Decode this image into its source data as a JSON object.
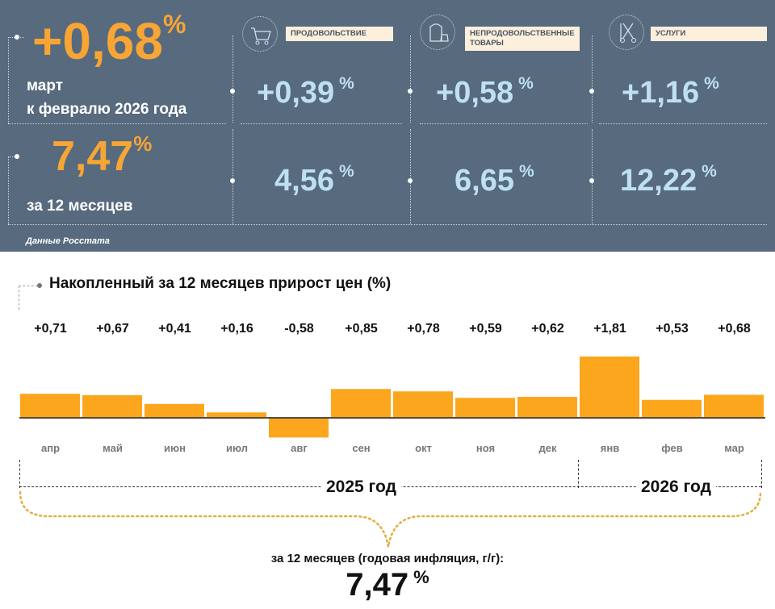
{
  "summary": {
    "monthly_value": "+0,68",
    "percent": "%",
    "monthly_label_1": "март",
    "monthly_label_2": "к февралю 2026 года",
    "annual_value": "7,47",
    "annual_label": "за 12 месяцев",
    "source": "Данные Росстата"
  },
  "categories": [
    {
      "name": "ПРОДОВОЛЬСТВИЕ",
      "icon": "shopping-cart-icon",
      "monthly": "+0,39",
      "annual": "4,56"
    },
    {
      "name_1": "НЕПРОДОВОЛЬСТВЕННЫЕ",
      "name_2": "ТОВАРЫ",
      "icon": "clothing-bag-icon",
      "monthly": "+0,58",
      "annual": "6,65"
    },
    {
      "name": "УСЛУГИ",
      "icon": "comb-scissors-icon",
      "monthly": "+1,16",
      "annual": "12,22"
    }
  ],
  "colors": {
    "panel": "#576a7e",
    "accent": "#f7a535",
    "value": "#bfe0f2",
    "bar": "#fba61c"
  },
  "chart_data": {
    "type": "bar",
    "title": "Накопленный за 12 месяцев прирост цен (%)",
    "categories": [
      "апр",
      "май",
      "июн",
      "июл",
      "авг",
      "сен",
      "окт",
      "ноя",
      "дек",
      "янв",
      "фев",
      "мар"
    ],
    "values": [
      0.71,
      0.67,
      0.41,
      0.16,
      -0.58,
      0.85,
      0.78,
      0.59,
      0.62,
      1.81,
      0.53,
      0.68
    ],
    "data_labels": [
      "+0,71",
      "+0,67",
      "+0,41",
      "+0,16",
      "-0,58",
      "+0,85",
      "+0,78",
      "+0,59",
      "+0,62",
      "+1,81",
      "+0,53",
      "+0,68"
    ],
    "year_groups": [
      {
        "label": "2025 год",
        "months": 9
      },
      {
        "label": "2026 год",
        "months": 3
      }
    ],
    "grid": false
  },
  "footer": {
    "label": "за 12 месяцев (годовая инфляция, г/г):",
    "value": "7,47",
    "percent": "%"
  }
}
